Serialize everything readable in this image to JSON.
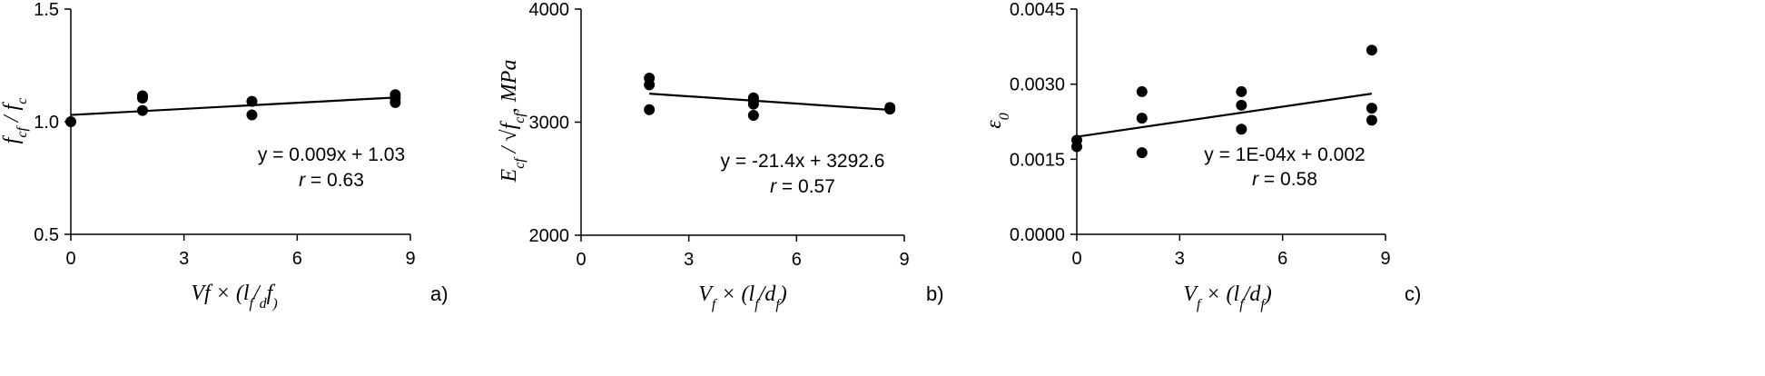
{
  "chart_data": [
    {
      "type": "scatter",
      "panel_label": "a)",
      "xlabel_parts": [
        "Vf",
        " × (",
        "l",
        "f",
        "/",
        "d",
        "f",
        ")"
      ],
      "ylabel_parts": [
        "f",
        "cf",
        " / ",
        "f",
        "c"
      ],
      "xlim": [
        0,
        9
      ],
      "ylim": [
        0.5,
        1.5
      ],
      "xticks": [
        "0",
        "3",
        "6",
        "9"
      ],
      "xtick_values": [
        0,
        3,
        6,
        9
      ],
      "yticks": [
        "0.5",
        "1.0",
        "1.5"
      ],
      "ytick_values": [
        0.5,
        1.0,
        1.5
      ],
      "points": [
        [
          0,
          1.0
        ],
        [
          1.9,
          1.115
        ],
        [
          1.9,
          1.105
        ],
        [
          1.9,
          1.05
        ],
        [
          4.8,
          1.09
        ],
        [
          4.8,
          1.03
        ],
        [
          8.6,
          1.12
        ],
        [
          8.6,
          1.105
        ],
        [
          8.6,
          1.085
        ]
      ],
      "trendline": {
        "slope": 0.009,
        "intercept": 1.03,
        "x_range": [
          0,
          8.6
        ]
      },
      "equation": "y = 0.009x + 1.03",
      "r_label": "r",
      "r_value": " = 0.63",
      "grid": false
    },
    {
      "type": "scatter",
      "panel_label": "b)",
      "xlabel_parts": [
        "V",
        "f",
        " × (",
        "l",
        "f",
        "/",
        "d",
        "f",
        ")"
      ],
      "ylabel_parts": [
        "E",
        "cf",
        " / √",
        "f",
        "cf",
        ", MPa"
      ],
      "xlim": [
        0,
        9
      ],
      "ylim": [
        2000,
        4000
      ],
      "xticks": [
        "0",
        "3",
        "6",
        "9"
      ],
      "xtick_values": [
        0,
        3,
        6,
        9
      ],
      "yticks": [
        "2000",
        "3000",
        "4000"
      ],
      "ytick_values": [
        2000,
        3000,
        4000
      ],
      "points": [
        [
          1.9,
          3390
        ],
        [
          1.9,
          3330
        ],
        [
          1.9,
          3110
        ],
        [
          4.8,
          3215
        ],
        [
          4.8,
          3195
        ],
        [
          4.8,
          3160
        ],
        [
          4.8,
          3060
        ],
        [
          8.6,
          3130
        ],
        [
          8.6,
          3115
        ]
      ],
      "trendline": {
        "slope": -21.4,
        "intercept": 3292.6,
        "x_range": [
          1.9,
          8.6
        ]
      },
      "equation": "y = -21.4x + 3292.6",
      "r_label": "r",
      "r_value": " = 0.57",
      "grid": false
    },
    {
      "type": "scatter",
      "panel_label": "c)",
      "xlabel_parts": [
        "V",
        "f",
        " × (",
        "l",
        "f",
        "/",
        "d",
        "f",
        ")"
      ],
      "ylabel_parts": [
        "ε",
        "0"
      ],
      "xlim": [
        0,
        9
      ],
      "ylim": [
        0.0,
        0.0045
      ],
      "xticks": [
        "0",
        "3",
        "6",
        "9"
      ],
      "xtick_values": [
        0,
        3,
        6,
        9
      ],
      "yticks": [
        "0.0000",
        "0.0015",
        "0.0030",
        "0.0045"
      ],
      "ytick_values": [
        0,
        0.0015,
        0.003,
        0.0045
      ],
      "points": [
        [
          0,
          0.00188
        ],
        [
          0,
          0.00175
        ],
        [
          1.9,
          0.00285
        ],
        [
          1.9,
          0.00232
        ],
        [
          1.9,
          0.00163
        ],
        [
          4.8,
          0.00285
        ],
        [
          4.8,
          0.00258
        ],
        [
          4.8,
          0.0021
        ],
        [
          8.6,
          0.00368
        ],
        [
          8.6,
          0.00252
        ],
        [
          8.6,
          0.00228
        ]
      ],
      "trendline": {
        "slope": 0.0001,
        "intercept": 0.00195,
        "x_range": [
          0,
          8.6
        ]
      },
      "equation": "y = 1E-04x + 0.002",
      "r_label": "r",
      "r_value": " = 0.58",
      "grid": false
    }
  ]
}
